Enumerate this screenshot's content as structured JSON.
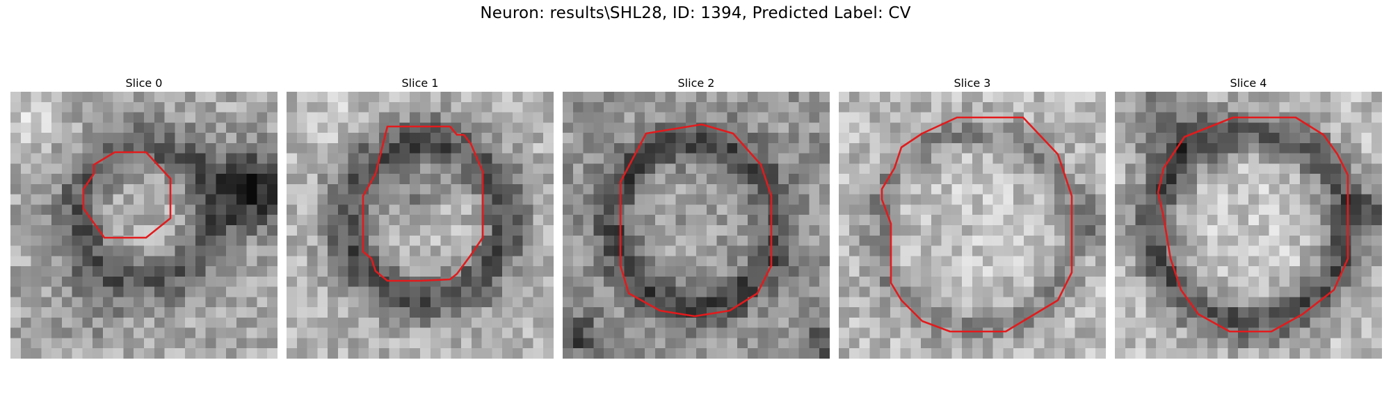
{
  "figure": {
    "title": "Neuron: results\\SHL28, ID: 1394, Predicted Label: CV"
  },
  "panels": [
    {
      "title": "Slice 0"
    },
    {
      "title": "Slice 1"
    },
    {
      "title": "Slice 2"
    },
    {
      "title": "Slice 3"
    },
    {
      "title": "Slice 4"
    }
  ],
  "style": {
    "contour_color": "#e31a1c",
    "colormap": "grayscale"
  }
}
